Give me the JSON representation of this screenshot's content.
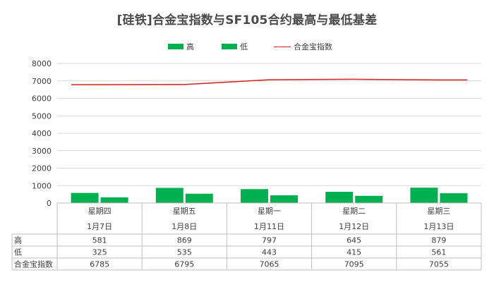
{
  "chart_data": {
    "type": "bar",
    "title": "[硅铁]合金宝指数与SF105合约最高与最低基差",
    "categories": [
      [
        "星期四",
        "1月7日"
      ],
      [
        "星期五",
        "1月8日"
      ],
      [
        "星期一",
        "1月11日"
      ],
      [
        "星期二",
        "1月12日"
      ],
      [
        "星期三",
        "1月13日"
      ]
    ],
    "series": [
      {
        "name": "高",
        "type": "bar",
        "color": "#00b050",
        "values": [
          581,
          869,
          797,
          645,
          879
        ]
      },
      {
        "name": "低",
        "type": "bar",
        "color": "#00b050",
        "values": [
          325,
          535,
          443,
          415,
          561
        ]
      },
      {
        "name": "合金宝指数",
        "type": "line",
        "color": "#d0201c",
        "values": [
          6785,
          6795,
          7065,
          7095,
          7055
        ]
      }
    ],
    "ylim": [
      0,
      8000
    ],
    "yticks": [
      0,
      1000,
      2000,
      3000,
      4000,
      5000,
      6000,
      7000,
      8000
    ],
    "grid": true,
    "legend": "top",
    "data_table": true
  }
}
